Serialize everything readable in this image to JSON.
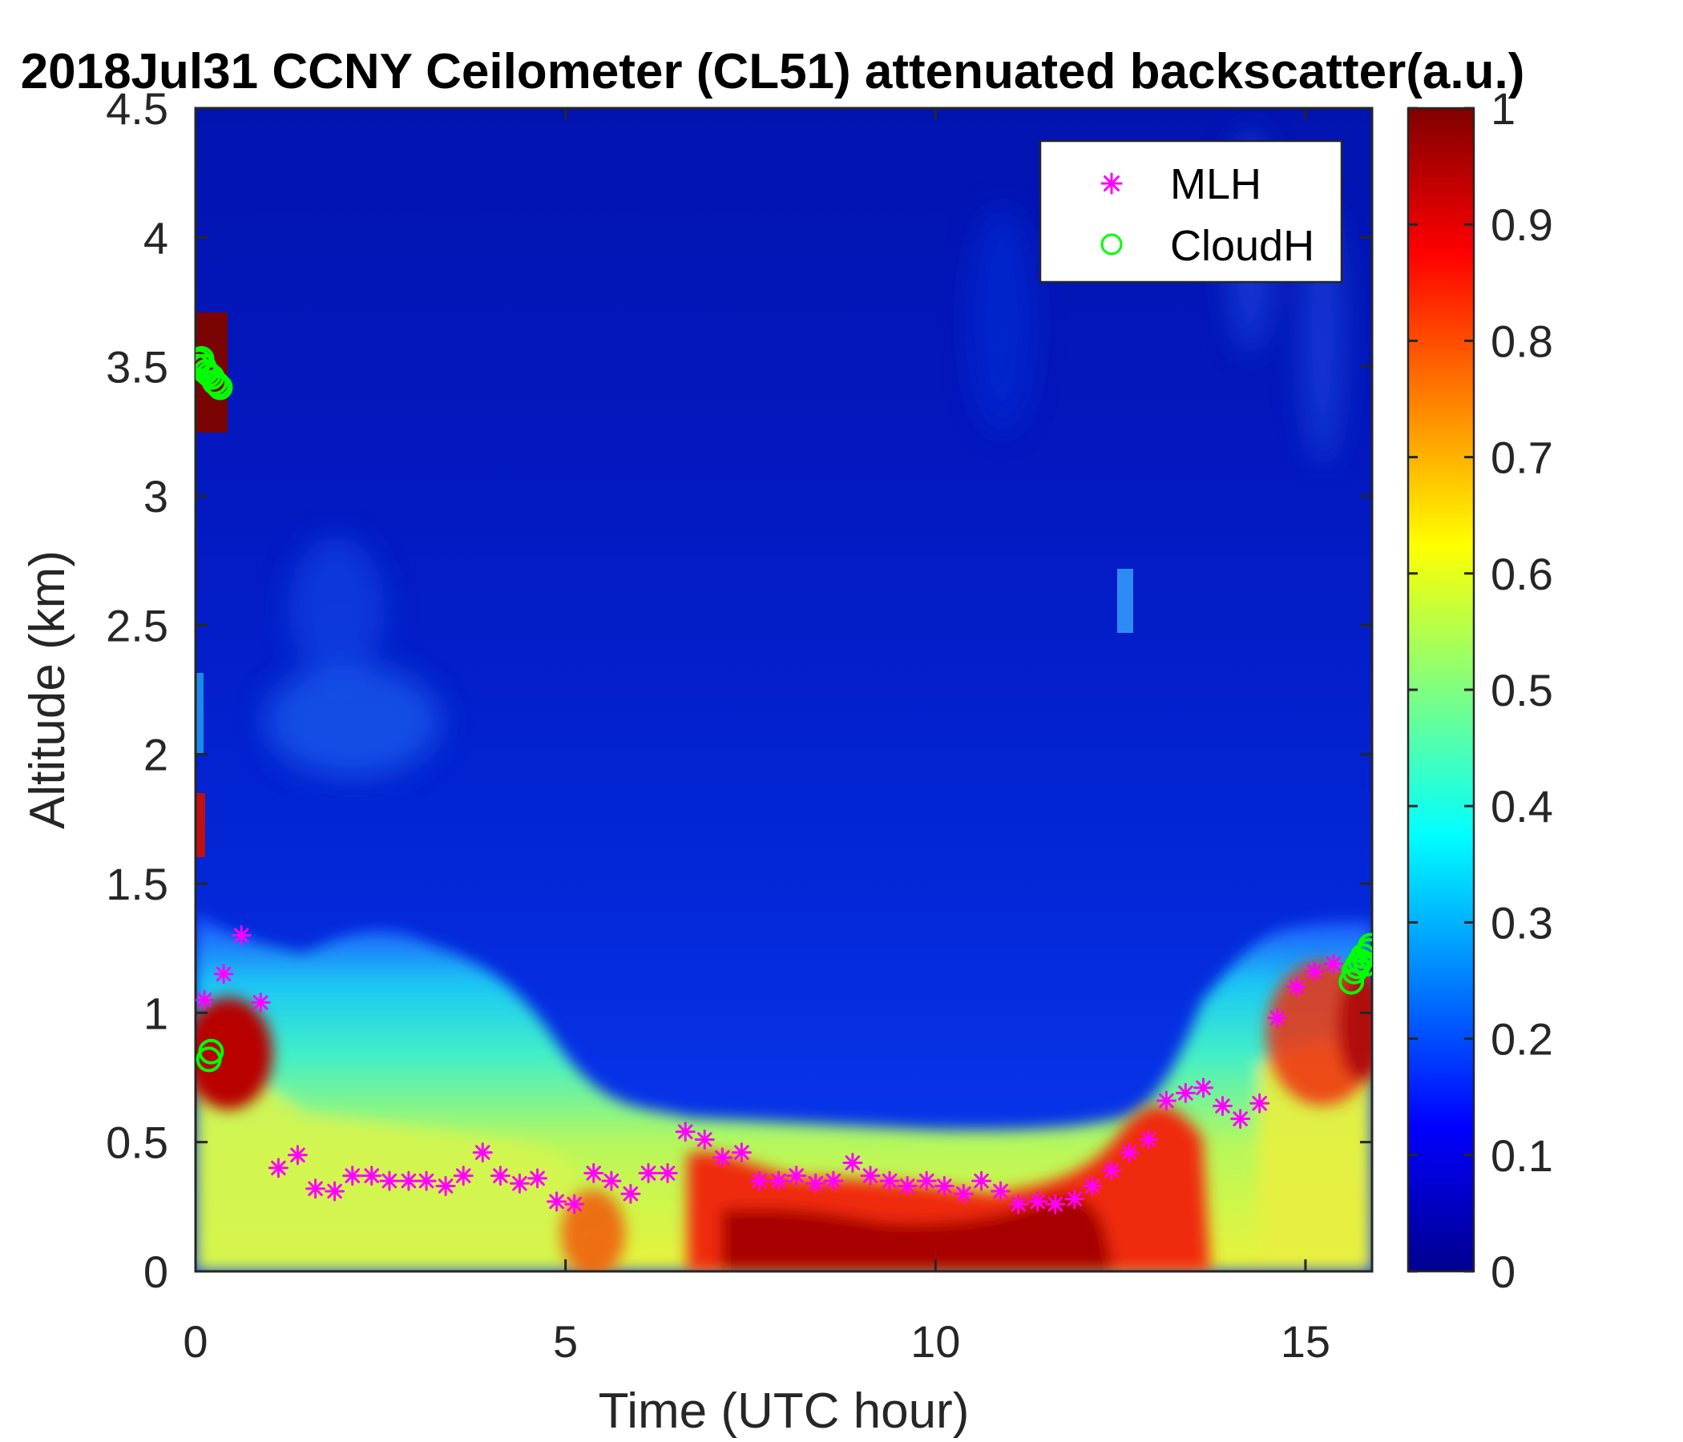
{
  "chart_data": {
    "type": "heatmap",
    "title": "2018Jul31 CCNY Ceilometer (CL51) attenuated backscatter(a.u.)",
    "xlabel": "Time (UTC hour)",
    "ylabel": "Altitude (km)",
    "xlim": [
      0,
      15.9
    ],
    "ylim": [
      0,
      4.5
    ],
    "xticks": [
      "0",
      "5",
      "10",
      "15"
    ],
    "yticks": [
      "0",
      "0.5",
      "1",
      "1.5",
      "2",
      "2.5",
      "3",
      "3.5",
      "4",
      "4.5"
    ],
    "colorbar": {
      "range": [
        0,
        1
      ],
      "ticks": [
        "0",
        "0.1",
        "0.2",
        "0.3",
        "0.4",
        "0.5",
        "0.6",
        "0.7",
        "0.8",
        "0.9",
        "1"
      ],
      "colormap": "jet"
    },
    "legend": {
      "location": "top-right",
      "entries": [
        {
          "label": "MLH",
          "marker": "asterisk",
          "color": "#ff00ff"
        },
        {
          "label": "CloudH",
          "marker": "circle",
          "color": "#00ff00"
        }
      ]
    },
    "series": [
      {
        "name": "MLH",
        "x": [
          0.12,
          0.38,
          0.62,
          0.88,
          1.12,
          1.38,
          1.62,
          1.88,
          2.12,
          2.38,
          2.62,
          2.88,
          3.12,
          3.38,
          3.62,
          3.88,
          4.12,
          4.38,
          4.62,
          4.88,
          5.12,
          5.38,
          5.62,
          5.88,
          6.12,
          6.38,
          6.62,
          6.88,
          7.12,
          7.38,
          7.62,
          7.88,
          8.12,
          8.38,
          8.62,
          8.88,
          9.12,
          9.38,
          9.62,
          9.88,
          10.12,
          10.38,
          10.62,
          10.88,
          11.12,
          11.38,
          11.62,
          11.88,
          12.12,
          12.38,
          12.62,
          12.88,
          13.12,
          13.38,
          13.62,
          13.88,
          14.12,
          14.38,
          14.62,
          14.88,
          15.12,
          15.38
        ],
        "y": [
          1.05,
          1.15,
          1.3,
          1.04,
          0.4,
          0.45,
          0.32,
          0.31,
          0.37,
          0.37,
          0.35,
          0.35,
          0.35,
          0.33,
          0.37,
          0.46,
          0.37,
          0.34,
          0.36,
          0.27,
          0.26,
          0.38,
          0.35,
          0.3,
          0.38,
          0.38,
          0.54,
          0.51,
          0.44,
          0.46,
          0.35,
          0.35,
          0.37,
          0.34,
          0.35,
          0.42,
          0.37,
          0.35,
          0.33,
          0.35,
          0.33,
          0.3,
          0.35,
          0.31,
          0.26,
          0.27,
          0.26,
          0.28,
          0.33,
          0.39,
          0.46,
          0.51,
          0.66,
          0.69,
          0.71,
          0.64,
          0.59,
          0.65,
          0.98,
          1.1,
          1.16,
          1.19
        ]
      },
      {
        "name": "CloudH",
        "x": [
          0.02,
          0.05,
          0.08,
          0.11,
          0.14,
          0.18,
          0.22,
          0.26,
          0.3,
          0.33,
          0.18,
          0.21,
          15.62,
          15.66,
          15.7,
          15.74,
          15.78,
          15.82,
          15.86,
          15.88
        ],
        "y": [
          3.5,
          3.52,
          3.53,
          3.5,
          3.48,
          3.47,
          3.46,
          3.44,
          3.43,
          3.42,
          0.82,
          0.85,
          1.12,
          1.16,
          1.18,
          1.2,
          1.22,
          1.19,
          1.24,
          1.26
        ]
      }
    ]
  }
}
